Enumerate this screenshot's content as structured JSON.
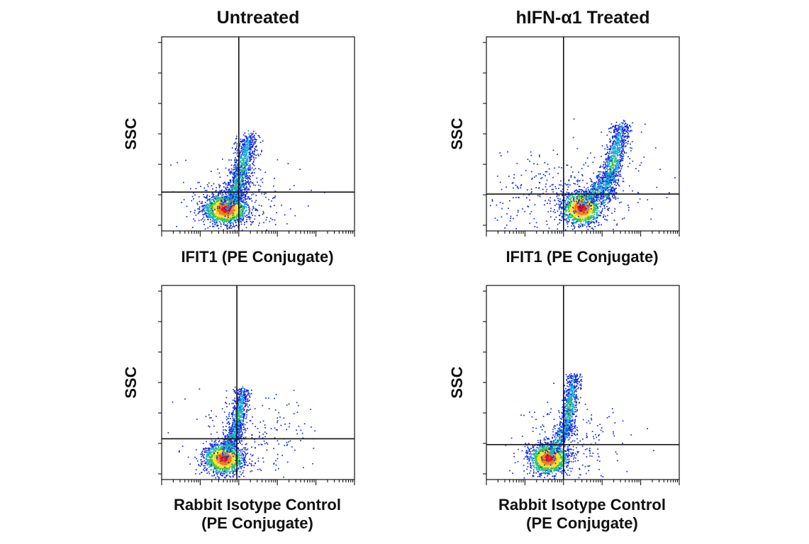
{
  "figure": {
    "column_titles": [
      "Untreated",
      "hIFN-α1 Treated"
    ],
    "ylabel": "SSC"
  },
  "chart_data": [
    {
      "type": "scatter",
      "id": "untreated-ifit1",
      "title": "Untreated",
      "xlabel": [
        "IFIT1 (PE Conjugate)"
      ],
      "ylabel": "SSC",
      "x_scale": "log",
      "xlim": [
        0,
        1
      ],
      "ylim": [
        0,
        1
      ],
      "quadrant_gate": {
        "x": 0.4,
        "y": 0.2
      },
      "populations": [
        {
          "name": "negative-dense",
          "cx": 0.33,
          "cy": 0.115,
          "sx": 0.058,
          "sy": 0.04,
          "n": 1700
        },
        {
          "name": "positive-arm",
          "x0": 0.38,
          "y0": 0.16,
          "x1": 0.45,
          "y1": 0.49,
          "spread": 0.028,
          "n": 900
        },
        {
          "name": "transition",
          "x0": 0.33,
          "y0": 0.12,
          "x1": 0.42,
          "y1": 0.33,
          "spread": 0.02,
          "n": 240
        },
        {
          "name": "scatter",
          "cx": 0.4,
          "cy": 0.18,
          "sx": 0.16,
          "sy": 0.09,
          "n": 220
        }
      ]
    },
    {
      "type": "scatter",
      "id": "treated-ifit1",
      "title": "hIFN-α1 Treated",
      "xlabel": [
        "IFIT1 (PE Conjugate)"
      ],
      "ylabel": "SSC",
      "x_scale": "log",
      "xlim": [
        0,
        1
      ],
      "ylim": [
        0,
        1
      ],
      "quadrant_gate": {
        "x": 0.4,
        "y": 0.19
      },
      "populations": [
        {
          "name": "negative-dense",
          "cx": 0.49,
          "cy": 0.12,
          "sx": 0.052,
          "sy": 0.045,
          "n": 1300
        },
        {
          "name": "positive-arm",
          "x0": 0.61,
          "y0": 0.16,
          "x1": 0.7,
          "y1": 0.55,
          "spread": 0.026,
          "n": 1000
        },
        {
          "name": "transition",
          "x0": 0.5,
          "y0": 0.14,
          "x1": 0.65,
          "y1": 0.3,
          "spread": 0.025,
          "n": 320
        },
        {
          "name": "scatter",
          "cx": 0.42,
          "cy": 0.2,
          "sx": 0.22,
          "sy": 0.11,
          "n": 380
        }
      ]
    },
    {
      "type": "scatter",
      "id": "untreated-isotype",
      "title": "Untreated",
      "xlabel": [
        "Rabbit Isotype Control",
        "(PE Conjugate)"
      ],
      "ylabel": "SSC",
      "x_scale": "log",
      "xlim": [
        0,
        1
      ],
      "ylim": [
        0,
        1
      ],
      "quadrant_gate": {
        "x": 0.39,
        "y": 0.21
      },
      "populations": [
        {
          "name": "negative-dense",
          "cx": 0.32,
          "cy": 0.11,
          "sx": 0.05,
          "sy": 0.04,
          "n": 1500
        },
        {
          "name": "positive-arm",
          "x0": 0.37,
          "y0": 0.18,
          "x1": 0.42,
          "y1": 0.47,
          "spread": 0.02,
          "n": 700
        },
        {
          "name": "transition",
          "x0": 0.32,
          "y0": 0.12,
          "x1": 0.39,
          "y1": 0.3,
          "spread": 0.02,
          "n": 240
        },
        {
          "name": "scatter",
          "cx": 0.45,
          "cy": 0.22,
          "sx": 0.15,
          "sy": 0.12,
          "n": 260
        }
      ]
    },
    {
      "type": "scatter",
      "id": "treated-isotype",
      "title": "hIFN-α1 Treated",
      "xlabel": [
        "Rabbit Isotype Control",
        "(PE Conjugate)"
      ],
      "ylabel": "SSC",
      "x_scale": "log",
      "xlim": [
        0,
        1
      ],
      "ylim": [
        0,
        1
      ],
      "quadrant_gate": {
        "x": 0.4,
        "y": 0.18
      },
      "populations": [
        {
          "name": "negative-dense",
          "cx": 0.32,
          "cy": 0.11,
          "sx": 0.05,
          "sy": 0.04,
          "n": 1500
        },
        {
          "name": "positive-arm",
          "x0": 0.41,
          "y0": 0.22,
          "x1": 0.45,
          "y1": 0.54,
          "spread": 0.02,
          "n": 700
        },
        {
          "name": "transition",
          "x0": 0.33,
          "y0": 0.13,
          "x1": 0.42,
          "y1": 0.3,
          "spread": 0.02,
          "n": 260
        },
        {
          "name": "scatter",
          "cx": 0.42,
          "cy": 0.2,
          "sx": 0.14,
          "sy": 0.1,
          "n": 240
        }
      ]
    }
  ]
}
